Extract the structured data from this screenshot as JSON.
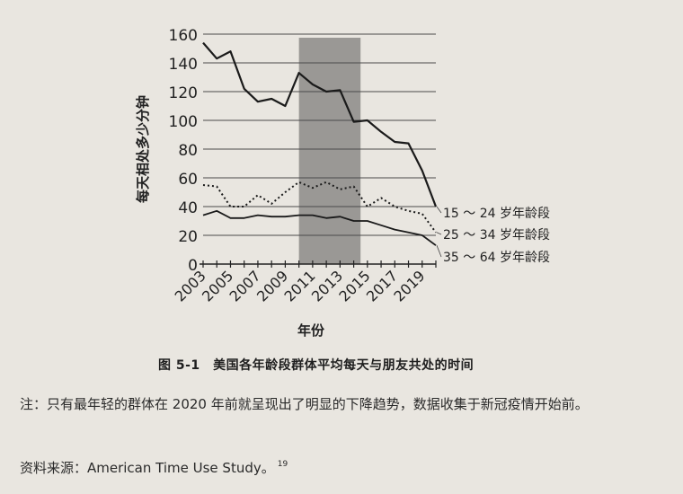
{
  "chart_data": {
    "type": "line",
    "title": "",
    "xlabel": "年份",
    "ylabel": "每天相处多少分钟",
    "ylim": [
      0,
      160
    ],
    "yticks": [
      "0",
      "20",
      "40",
      "60",
      "80",
      "100",
      "120",
      "140",
      "160"
    ],
    "xlim": [
      2003,
      2020
    ],
    "xticks": [
      "2003",
      "2005",
      "2007",
      "2009",
      "2011",
      "2013",
      "2015",
      "2017",
      "2019"
    ],
    "shaded_region": [
      2010,
      2014.5
    ],
    "grid": "horizontal",
    "legend": "labels at right end of lines",
    "series": [
      {
        "name": "15 ～ 24 岁年龄段",
        "style": "solid",
        "x": [
          2003,
          2004,
          2005,
          2006,
          2007,
          2008,
          2009,
          2010,
          2011,
          2012,
          2013,
          2014,
          2015,
          2016,
          2017,
          2018,
          2019,
          2020
        ],
        "values": [
          154,
          143,
          148,
          122,
          113,
          115,
          110,
          133,
          125,
          120,
          121,
          99,
          100,
          92,
          85,
          84,
          65,
          40
        ]
      },
      {
        "name": "25 ～ 34 岁年龄段",
        "style": "dotted",
        "x": [
          2003,
          2004,
          2005,
          2006,
          2007,
          2008,
          2009,
          2010,
          2011,
          2012,
          2013,
          2014,
          2015,
          2016,
          2017,
          2018,
          2019,
          2020
        ],
        "values": [
          55,
          54,
          40,
          40,
          48,
          42,
          50,
          57,
          53,
          57,
          52,
          54,
          40,
          46,
          40,
          37,
          35,
          22
        ]
      },
      {
        "name": "35 ～ 64 岁年龄段",
        "style": "solid",
        "x": [
          2003,
          2004,
          2005,
          2006,
          2007,
          2008,
          2009,
          2010,
          2011,
          2012,
          2013,
          2014,
          2015,
          2016,
          2017,
          2018,
          2019,
          2020
        ],
        "values": [
          34,
          37,
          32,
          32,
          34,
          33,
          33,
          34,
          34,
          32,
          33,
          30,
          30,
          27,
          24,
          22,
          20,
          13
        ]
      }
    ]
  },
  "caption": "图 5-1　美国各年龄段群体平均每天与朋友共处的时间",
  "note": "注：只有最年轻的群体在 2020 年前就呈现出了明显的下降趋势，数据收集于新冠疫情开始前。",
  "source": "资料来源：American Time Use Study。",
  "source_ref": "19"
}
